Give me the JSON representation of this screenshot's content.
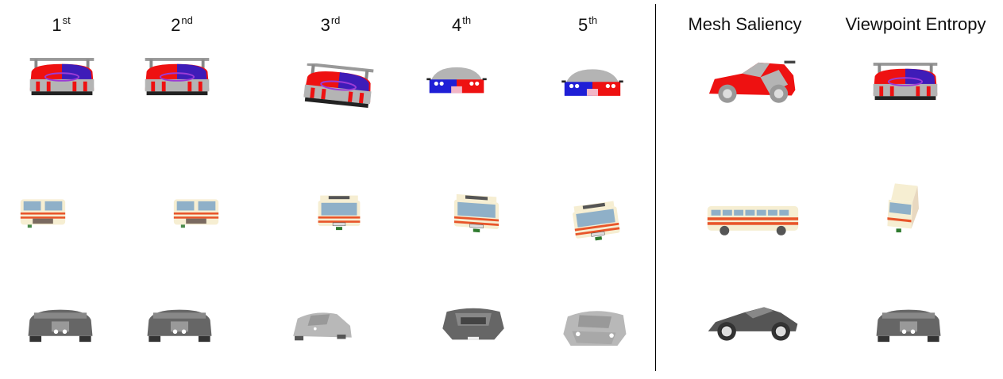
{
  "headers": {
    "rank_1": {
      "num": "1",
      "suffix": "st"
    },
    "rank_2": {
      "num": "2",
      "suffix": "nd"
    },
    "rank_3": {
      "num": "3",
      "suffix": "rd"
    },
    "rank_4": {
      "num": "4",
      "suffix": "th"
    },
    "rank_5": {
      "num": "5",
      "suffix": "th"
    },
    "mesh_saliency": "Mesh Saliency",
    "viewpoint_entropy": "Viewpoint Entropy"
  },
  "colors": {
    "car_red": "#ee1111",
    "car_blue": "#1f1fd6",
    "car_gray": "#b4b4b4",
    "bus_cream": "#f6eed2",
    "bus_window": "#8fb0c8",
    "bus_stripe": "#e8552a",
    "sports_dark": "#666666",
    "sports_light": "#b8b8b8",
    "divider": "#000000"
  },
  "rows": [
    {
      "object": "race-car",
      "views": [
        "rear",
        "rear",
        "rear-tilted",
        "front",
        "front-small"
      ],
      "mesh_saliency_view": "side",
      "viewpoint_entropy_view": "rear"
    },
    {
      "object": "bus",
      "views": [
        "rear",
        "rear",
        "front",
        "front-quarter",
        "front-high"
      ],
      "mesh_saliency_view": "side",
      "viewpoint_entropy_view": "front-high"
    },
    {
      "object": "sports-car",
      "views": [
        "rear",
        "rear",
        "front-quarter",
        "top-rear",
        "top-front"
      ],
      "mesh_saliency_view": "side",
      "viewpoint_entropy_view": "rear"
    }
  ]
}
